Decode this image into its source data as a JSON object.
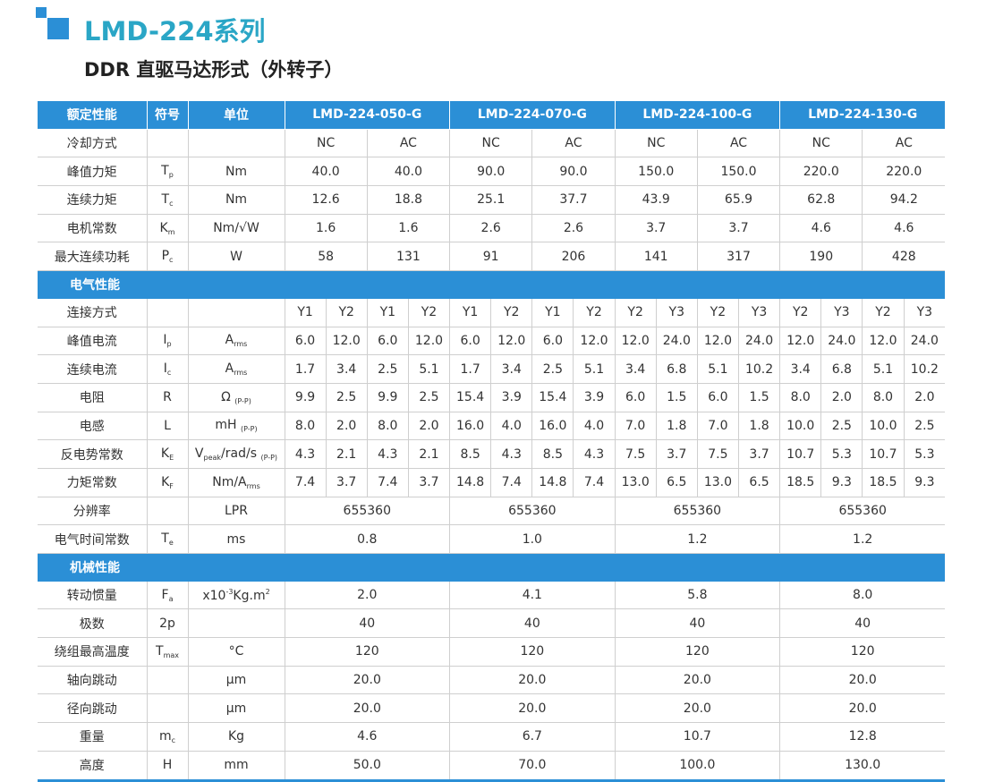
{
  "header": {
    "title": "LMD-224系列",
    "subtitle": "DDR 直驱马达形式（外转子）"
  },
  "table": {
    "columns": [
      "额定性能",
      "符号",
      "单位"
    ],
    "models": [
      "LMD-224-050-G",
      "LMD-224-070-G",
      "LMD-224-100-G",
      "LMD-224-130-G"
    ],
    "rows": [
      {
        "name": "冷却方式",
        "symbol": [],
        "unit": [],
        "values": [
          "NC",
          "AC",
          "NC",
          "AC",
          "NC",
          "AC",
          "NC",
          "AC"
        ]
      },
      {
        "name": "峰值力矩",
        "symbol": [
          "T",
          {
            "sub": "p"
          }
        ],
        "unit": [
          "Nm"
        ],
        "values": [
          "40.0",
          "40.0",
          "90.0",
          "90.0",
          "150.0",
          "150.0",
          "220.0",
          "220.0"
        ]
      },
      {
        "name": "连续力矩",
        "symbol": [
          "T",
          {
            "sub": "c"
          }
        ],
        "unit": [
          "Nm"
        ],
        "values": [
          "12.6",
          "18.8",
          "25.1",
          "37.7",
          "43.9",
          "65.9",
          "62.8",
          "94.2"
        ]
      },
      {
        "name": "电机常数",
        "symbol": [
          "K",
          {
            "sub": "m"
          }
        ],
        "unit": [
          "Nm/√W"
        ],
        "values": [
          "1.6",
          "1.6",
          "2.6",
          "2.6",
          "3.7",
          "3.7",
          "4.6",
          "4.6"
        ]
      },
      {
        "name": "最大连续功耗",
        "symbol": [
          "P",
          {
            "sub": "c"
          }
        ],
        "unit": [
          "W"
        ],
        "values": [
          "58",
          "131",
          "91",
          "206",
          "141",
          "317",
          "190",
          "428"
        ]
      },
      {
        "section": "电气性能"
      },
      {
        "name": "连接方式",
        "symbol": [],
        "unit": [],
        "values": [
          "Y1",
          "Y2",
          "Y1",
          "Y2",
          "Y1",
          "Y2",
          "Y1",
          "Y2",
          "Y2",
          "Y3",
          "Y2",
          "Y3",
          "Y2",
          "Y3",
          "Y2",
          "Y3"
        ]
      },
      {
        "name": "峰值电流",
        "symbol": [
          "I",
          {
            "sub": "p"
          }
        ],
        "unit": [
          "A",
          {
            "sub": "rms"
          }
        ],
        "values": [
          "6.0",
          "12.0",
          "6.0",
          "12.0",
          "6.0",
          "12.0",
          "6.0",
          "12.0",
          "12.0",
          "24.0",
          "12.0",
          "24.0",
          "12.0",
          "24.0",
          "12.0",
          "24.0"
        ]
      },
      {
        "name": "连续电流",
        "symbol": [
          "I",
          {
            "sub": "c"
          }
        ],
        "unit": [
          "A",
          {
            "sub": "rms"
          }
        ],
        "values": [
          "1.7",
          "3.4",
          "2.5",
          "5.1",
          "1.7",
          "3.4",
          "2.5",
          "5.1",
          "3.4",
          "6.8",
          "5.1",
          "10.2",
          "3.4",
          "6.8",
          "5.1",
          "10.2"
        ]
      },
      {
        "name": "电阻",
        "symbol": [
          "R"
        ],
        "unit": [
          "Ω ",
          {
            "sub": "(P-P)"
          }
        ],
        "values": [
          "9.9",
          "2.5",
          "9.9",
          "2.5",
          "15.4",
          "3.9",
          "15.4",
          "3.9",
          "6.0",
          "1.5",
          "6.0",
          "1.5",
          "8.0",
          "2.0",
          "8.0",
          "2.0"
        ]
      },
      {
        "name": "电感",
        "symbol": [
          "L"
        ],
        "unit": [
          "mH ",
          {
            "sub": "(P-P)"
          }
        ],
        "values": [
          "8.0",
          "2.0",
          "8.0",
          "2.0",
          "16.0",
          "4.0",
          "16.0",
          "4.0",
          "7.0",
          "1.8",
          "7.0",
          "1.8",
          "10.0",
          "2.5",
          "10.0",
          "2.5"
        ]
      },
      {
        "name": "反电势常数",
        "symbol": [
          "K",
          {
            "sub": "E"
          }
        ],
        "unit": [
          "V",
          {
            "sub": "peak"
          },
          "/rad/s ",
          {
            "sub": "(P-P)"
          }
        ],
        "values": [
          "4.3",
          "2.1",
          "4.3",
          "2.1",
          "8.5",
          "4.3",
          "8.5",
          "4.3",
          "7.5",
          "3.7",
          "7.5",
          "3.7",
          "10.7",
          "5.3",
          "10.7",
          "5.3"
        ]
      },
      {
        "name": "力矩常数",
        "symbol": [
          "K",
          {
            "sub": "F"
          }
        ],
        "unit": [
          "Nm/A",
          {
            "sub": "rms"
          }
        ],
        "values": [
          "7.4",
          "3.7",
          "7.4",
          "3.7",
          "14.8",
          "7.4",
          "14.8",
          "7.4",
          "13.0",
          "6.5",
          "13.0",
          "6.5",
          "18.5",
          "9.3",
          "18.5",
          "9.3"
        ]
      },
      {
        "name": "分辨率",
        "symbol": [],
        "unit": [
          "LPR"
        ],
        "values": [
          "655360",
          "655360",
          "655360",
          "655360"
        ]
      },
      {
        "name": "电气时间常数",
        "symbol": [
          "T",
          {
            "sub": "e"
          }
        ],
        "unit": [
          "ms"
        ],
        "values": [
          "0.8",
          "1.0",
          "1.2",
          "1.2"
        ]
      },
      {
        "section": "机械性能"
      },
      {
        "name": "转动惯量",
        "symbol": [
          "F",
          {
            "sub": "a"
          }
        ],
        "unit": [
          "x10",
          {
            "sup": "-3"
          },
          "Kg.m",
          {
            "sup": "2"
          }
        ],
        "values": [
          "2.0",
          "4.1",
          "5.8",
          "8.0"
        ]
      },
      {
        "name": "极数",
        "symbol": [
          "2p"
        ],
        "unit": [],
        "values": [
          "40",
          "40",
          "40",
          "40"
        ]
      },
      {
        "name": "绕组最高温度",
        "symbol": [
          "T",
          {
            "sub": "max"
          }
        ],
        "unit": [
          "°C"
        ],
        "values": [
          "120",
          "120",
          "120",
          "120"
        ]
      },
      {
        "name": "轴向跳动",
        "symbol": [],
        "unit": [
          "μm"
        ],
        "values": [
          "20.0",
          "20.0",
          "20.0",
          "20.0"
        ]
      },
      {
        "name": "径向跳动",
        "symbol": [],
        "unit": [
          "μm"
        ],
        "values": [
          "20.0",
          "20.0",
          "20.0",
          "20.0"
        ]
      },
      {
        "name": "重量",
        "symbol": [
          "m",
          {
            "sub": "c"
          }
        ],
        "unit": [
          "Kg"
        ],
        "values": [
          "4.6",
          "6.7",
          "10.7",
          "12.8"
        ]
      },
      {
        "name": "高度",
        "symbol": [
          "H"
        ],
        "unit": [
          "mm"
        ],
        "values": [
          "50.0",
          "70.0",
          "100.0",
          "130.0"
        ]
      }
    ]
  }
}
